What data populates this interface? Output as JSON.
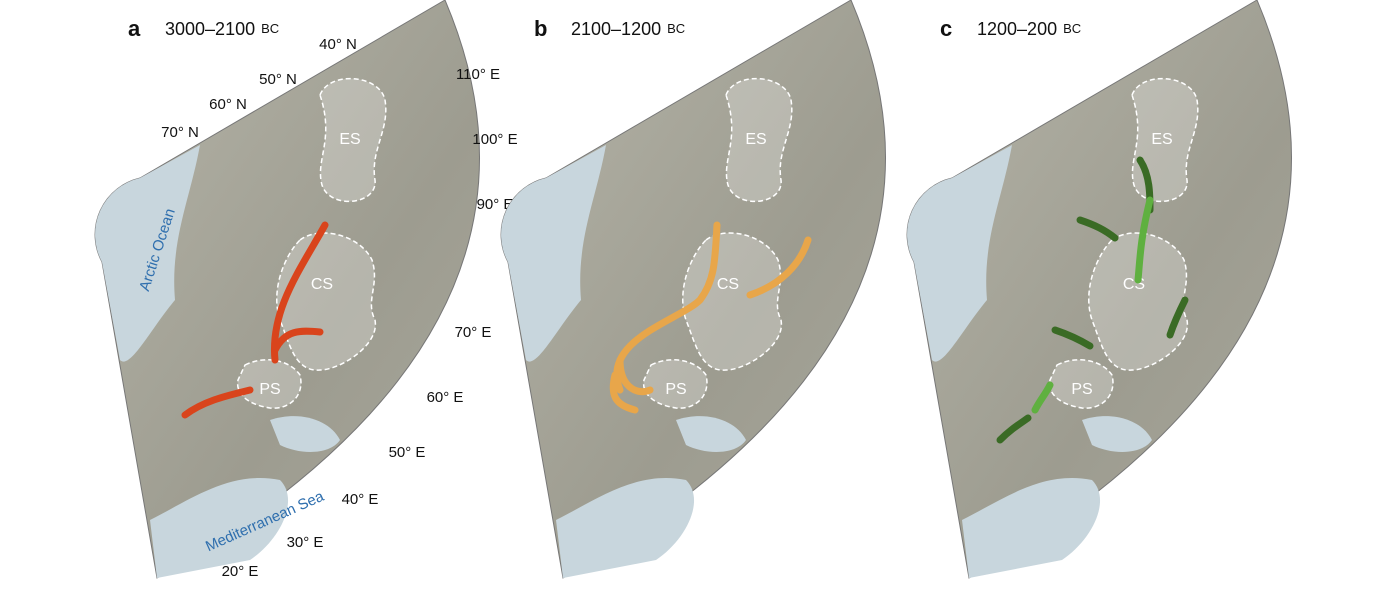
{
  "panels": [
    {
      "letter": "a",
      "period": "3000–2100",
      "era": "BC",
      "regions": [
        "ES",
        "CS",
        "PS"
      ],
      "latitude_labels": [
        "40° N",
        "50° N",
        "60° N",
        "70° N"
      ],
      "longitude_labels": [
        "110° E",
        "100° E",
        "90° E",
        "70° E",
        "60° E",
        "50° E",
        "40° E",
        "30° E",
        "20° E"
      ],
      "seas": [
        "Arctic Ocean",
        "Mediterranean Sea"
      ]
    },
    {
      "letter": "b",
      "period": "2100–1200",
      "era": "BC",
      "regions": [
        "ES",
        "CS",
        "PS"
      ]
    },
    {
      "letter": "c",
      "period": "1200–200",
      "era": "BC",
      "regions": [
        "ES",
        "CS",
        "PS"
      ]
    }
  ]
}
